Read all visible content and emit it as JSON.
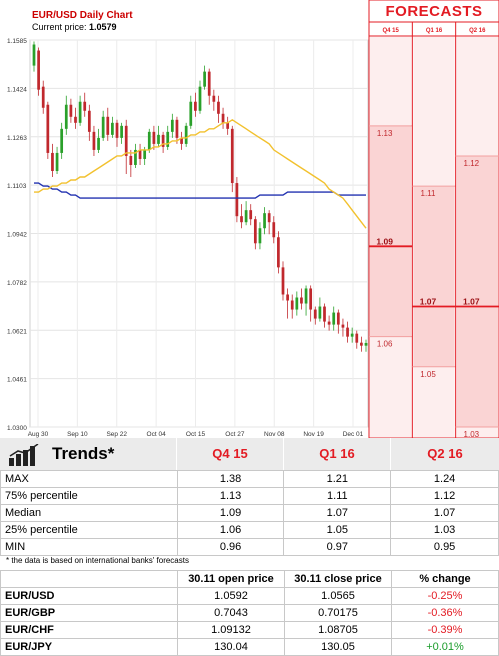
{
  "header": {
    "title": "EUR/USD Daily Chart",
    "current_label": "Current price: ",
    "current_value": "1.0579",
    "forecasts_title": "FORECASTS"
  },
  "colors": {
    "bull": "#2aa02a",
    "bear": "#c0282d",
    "ma_short": "#f2c12e",
    "ma_long": "#2232b0",
    "forecast_accent": "#e31b23",
    "forecast_fill": "#fdeeee"
  },
  "chart_data": {
    "type": "candlestick",
    "title": "EUR/USD Daily Chart",
    "ylim": [
      1.03,
      1.1585
    ],
    "y_ticks": [
      "1.1585",
      "1.1424",
      "1.1263",
      "1.1103",
      "1.0942",
      "1.0782",
      "1.0621",
      "1.0461",
      "1.0300"
    ],
    "x_ticks": [
      "Aug 30",
      "Sep 10",
      "Sep 22",
      "Oct 04",
      "Oct 15",
      "Oct 27",
      "Nov 08",
      "Nov 19",
      "Dec 01"
    ],
    "candles": [
      {
        "o": 1.15,
        "c": 1.157,
        "h": 1.158,
        "l": 1.148
      },
      {
        "o": 1.155,
        "c": 1.142,
        "h": 1.156,
        "l": 1.14
      },
      {
        "o": 1.143,
        "c": 1.136,
        "h": 1.145,
        "l": 1.134
      },
      {
        "o": 1.137,
        "c": 1.121,
        "h": 1.138,
        "l": 1.119
      },
      {
        "o": 1.121,
        "c": 1.115,
        "h": 1.124,
        "l": 1.113
      },
      {
        "o": 1.115,
        "c": 1.121,
        "h": 1.123,
        "l": 1.114
      },
      {
        "o": 1.121,
        "c": 1.129,
        "h": 1.131,
        "l": 1.119
      },
      {
        "o": 1.129,
        "c": 1.137,
        "h": 1.14,
        "l": 1.127
      },
      {
        "o": 1.137,
        "c": 1.133,
        "h": 1.139,
        "l": 1.131
      },
      {
        "o": 1.133,
        "c": 1.131,
        "h": 1.136,
        "l": 1.129
      },
      {
        "o": 1.131,
        "c": 1.138,
        "h": 1.14,
        "l": 1.13
      },
      {
        "o": 1.138,
        "c": 1.135,
        "h": 1.141,
        "l": 1.133
      },
      {
        "o": 1.135,
        "c": 1.128,
        "h": 1.137,
        "l": 1.125
      },
      {
        "o": 1.128,
        "c": 1.122,
        "h": 1.13,
        "l": 1.12
      },
      {
        "o": 1.122,
        "c": 1.126,
        "h": 1.129,
        "l": 1.121
      },
      {
        "o": 1.126,
        "c": 1.133,
        "h": 1.135,
        "l": 1.125
      },
      {
        "o": 1.133,
        "c": 1.127,
        "h": 1.136,
        "l": 1.125
      },
      {
        "o": 1.127,
        "c": 1.131,
        "h": 1.133,
        "l": 1.126
      },
      {
        "o": 1.131,
        "c": 1.126,
        "h": 1.132,
        "l": 1.123
      },
      {
        "o": 1.126,
        "c": 1.13,
        "h": 1.131,
        "l": 1.124
      },
      {
        "o": 1.13,
        "c": 1.12,
        "h": 1.132,
        "l": 1.114
      },
      {
        "o": 1.12,
        "c": 1.117,
        "h": 1.122,
        "l": 1.113
      },
      {
        "o": 1.117,
        "c": 1.122,
        "h": 1.124,
        "l": 1.116
      },
      {
        "o": 1.122,
        "c": 1.119,
        "h": 1.124,
        "l": 1.117
      },
      {
        "o": 1.119,
        "c": 1.122,
        "h": 1.123,
        "l": 1.117
      },
      {
        "o": 1.122,
        "c": 1.128,
        "h": 1.129,
        "l": 1.121
      },
      {
        "o": 1.128,
        "c": 1.124,
        "h": 1.13,
        "l": 1.122
      },
      {
        "o": 1.124,
        "c": 1.127,
        "h": 1.13,
        "l": 1.123
      },
      {
        "o": 1.127,
        "c": 1.123,
        "h": 1.128,
        "l": 1.121
      },
      {
        "o": 1.123,
        "c": 1.128,
        "h": 1.13,
        "l": 1.122
      },
      {
        "o": 1.128,
        "c": 1.132,
        "h": 1.134,
        "l": 1.126
      },
      {
        "o": 1.132,
        "c": 1.126,
        "h": 1.133,
        "l": 1.124
      },
      {
        "o": 1.126,
        "c": 1.124,
        "h": 1.128,
        "l": 1.122
      },
      {
        "o": 1.124,
        "c": 1.13,
        "h": 1.131,
        "l": 1.123
      },
      {
        "o": 1.13,
        "c": 1.138,
        "h": 1.14,
        "l": 1.129
      },
      {
        "o": 1.138,
        "c": 1.135,
        "h": 1.141,
        "l": 1.133
      },
      {
        "o": 1.135,
        "c": 1.143,
        "h": 1.145,
        "l": 1.134
      },
      {
        "o": 1.143,
        "c": 1.148,
        "h": 1.15,
        "l": 1.142
      },
      {
        "o": 1.148,
        "c": 1.14,
        "h": 1.149,
        "l": 1.137
      },
      {
        "o": 1.14,
        "c": 1.138,
        "h": 1.142,
        "l": 1.135
      },
      {
        "o": 1.138,
        "c": 1.134,
        "h": 1.14,
        "l": 1.131
      },
      {
        "o": 1.134,
        "c": 1.131,
        "h": 1.136,
        "l": 1.129
      },
      {
        "o": 1.131,
        "c": 1.129,
        "h": 1.133,
        "l": 1.127
      },
      {
        "o": 1.129,
        "c": 1.111,
        "h": 1.13,
        "l": 1.108
      },
      {
        "o": 1.111,
        "c": 1.1,
        "h": 1.113,
        "l": 1.098
      },
      {
        "o": 1.1,
        "c": 1.098,
        "h": 1.104,
        "l": 1.096
      },
      {
        "o": 1.098,
        "c": 1.102,
        "h": 1.105,
        "l": 1.097
      },
      {
        "o": 1.102,
        "c": 1.099,
        "h": 1.104,
        "l": 1.097
      },
      {
        "o": 1.099,
        "c": 1.091,
        "h": 1.1,
        "l": 1.089
      },
      {
        "o": 1.091,
        "c": 1.096,
        "h": 1.098,
        "l": 1.089
      },
      {
        "o": 1.096,
        "c": 1.101,
        "h": 1.103,
        "l": 1.094
      },
      {
        "o": 1.101,
        "c": 1.098,
        "h": 1.102,
        "l": 1.094
      },
      {
        "o": 1.098,
        "c": 1.093,
        "h": 1.1,
        "l": 1.091
      },
      {
        "o": 1.093,
        "c": 1.083,
        "h": 1.095,
        "l": 1.081
      },
      {
        "o": 1.083,
        "c": 1.074,
        "h": 1.085,
        "l": 1.072
      },
      {
        "o": 1.074,
        "c": 1.072,
        "h": 1.076,
        "l": 1.066
      },
      {
        "o": 1.072,
        "c": 1.069,
        "h": 1.074,
        "l": 1.066
      },
      {
        "o": 1.069,
        "c": 1.073,
        "h": 1.075,
        "l": 1.067
      },
      {
        "o": 1.073,
        "c": 1.071,
        "h": 1.076,
        "l": 1.069
      },
      {
        "o": 1.071,
        "c": 1.076,
        "h": 1.077,
        "l": 1.067
      },
      {
        "o": 1.076,
        "c": 1.069,
        "h": 1.077,
        "l": 1.065
      },
      {
        "o": 1.069,
        "c": 1.066,
        "h": 1.07,
        "l": 1.064
      },
      {
        "o": 1.066,
        "c": 1.07,
        "h": 1.073,
        "l": 1.065
      },
      {
        "o": 1.07,
        "c": 1.065,
        "h": 1.071,
        "l": 1.063
      },
      {
        "o": 1.065,
        "c": 1.064,
        "h": 1.067,
        "l": 1.062
      },
      {
        "o": 1.064,
        "c": 1.068,
        "h": 1.07,
        "l": 1.062
      },
      {
        "o": 1.068,
        "c": 1.064,
        "h": 1.069,
        "l": 1.061
      },
      {
        "o": 1.064,
        "c": 1.063,
        "h": 1.066,
        "l": 1.06
      },
      {
        "o": 1.063,
        "c": 1.06,
        "h": 1.065,
        "l": 1.058
      },
      {
        "o": 1.06,
        "c": 1.061,
        "h": 1.063,
        "l": 1.058
      },
      {
        "o": 1.061,
        "c": 1.058,
        "h": 1.062,
        "l": 1.056
      },
      {
        "o": 1.058,
        "c": 1.057,
        "h": 1.06,
        "l": 1.055
      },
      {
        "o": 1.057,
        "c": 1.0579,
        "h": 1.059,
        "l": 1.055
      }
    ],
    "ma_short": [
      1.108,
      1.108,
      1.109,
      1.109,
      1.11,
      1.11,
      1.111,
      1.111,
      1.112,
      1.112,
      1.113,
      1.113,
      1.114,
      1.115,
      1.116,
      1.117,
      1.118,
      1.119,
      1.12,
      1.12,
      1.121,
      1.121,
      1.121,
      1.122,
      1.122,
      1.122,
      1.123,
      1.123,
      1.124,
      1.124,
      1.125,
      1.125,
      1.126,
      1.126,
      1.127,
      1.127,
      1.128,
      1.128,
      1.129,
      1.129,
      1.13,
      1.131,
      1.131,
      1.132,
      1.131,
      1.13,
      1.129,
      1.128,
      1.127,
      1.126,
      1.125,
      1.124,
      1.122,
      1.121,
      1.12,
      1.119,
      1.118,
      1.117,
      1.116,
      1.115,
      1.114,
      1.113,
      1.112,
      1.111,
      1.109,
      1.108,
      1.107,
      1.106,
      1.104,
      1.102,
      1.1,
      1.098,
      1.096
    ],
    "ma_long": [
      1.111,
      1.111,
      1.11,
      1.11,
      1.109,
      1.109,
      1.108,
      1.108,
      1.107,
      1.107,
      1.106,
      1.106,
      1.106,
      1.106,
      1.106,
      1.106,
      1.106,
      1.106,
      1.106,
      1.106,
      1.106,
      1.106,
      1.106,
      1.106,
      1.106,
      1.106,
      1.106,
      1.106,
      1.106,
      1.106,
      1.106,
      1.106,
      1.106,
      1.106,
      1.106,
      1.106,
      1.106,
      1.106,
      1.106,
      1.106,
      1.106,
      1.106,
      1.106,
      1.106,
      1.106,
      1.106,
      1.106,
      1.106,
      1.106,
      1.107,
      1.107,
      1.107,
      1.107,
      1.107,
      1.107,
      1.108,
      1.108,
      1.108,
      1.108,
      1.108,
      1.108,
      1.108,
      1.108,
      1.108,
      1.108,
      1.108,
      1.107,
      1.107,
      1.107,
      1.107,
      1.107,
      1.107,
      1.107
    ],
    "forecasts": {
      "ylim": [
        1.03,
        1.1585
      ],
      "columns": [
        {
          "name": "Q4 15",
          "median": "1.09",
          "p75": "1.13",
          "p25": "1.06",
          "max_v": 1.38,
          "min_v": 0.96
        },
        {
          "name": "Q1 16",
          "median": "1.07",
          "p75": "1.11",
          "p25": "1.05",
          "max_v": 1.21,
          "min_v": 0.97
        },
        {
          "name": "Q2 16",
          "median": "1.07",
          "p75": "1.12",
          "p25": "1.03",
          "max_v": 1.24,
          "min_v": 0.95
        }
      ]
    }
  },
  "trends": {
    "label": "Trends*",
    "columns": [
      "Q4 15",
      "Q1 16",
      "Q2 16"
    ],
    "rows": [
      {
        "label": "MAX",
        "values": [
          "1.38",
          "1.21",
          "1.24"
        ]
      },
      {
        "label": "75% percentile",
        "values": [
          "1.13",
          "1.11",
          "1.12"
        ]
      },
      {
        "label": "Median",
        "values": [
          "1.09",
          "1.07",
          "1.07"
        ]
      },
      {
        "label": "25% percentile",
        "values": [
          "1.06",
          "1.05",
          "1.03"
        ]
      },
      {
        "label": "MIN",
        "values": [
          "0.96",
          "0.97",
          "0.95"
        ]
      }
    ],
    "footnote": "* the data is based on international banks' forecasts"
  },
  "pairs": {
    "headers": [
      "",
      "30.11 open price",
      "30.11 close price",
      "% change"
    ],
    "rows": [
      {
        "pair": "EUR/USD",
        "open": "1.0592",
        "close": "1.0565",
        "change": "-0.25%",
        "sign": "neg"
      },
      {
        "pair": "EUR/GBP",
        "open": "0.7043",
        "close": "0.70175",
        "change": "-0.36%",
        "sign": "neg"
      },
      {
        "pair": "EUR/CHF",
        "open": "1.09132",
        "close": "1.08705",
        "change": "-0.39%",
        "sign": "neg"
      },
      {
        "pair": "EUR/JPY",
        "open": "130.04",
        "close": "130.05",
        "change": "+0.01%",
        "sign": "pos"
      }
    ]
  }
}
